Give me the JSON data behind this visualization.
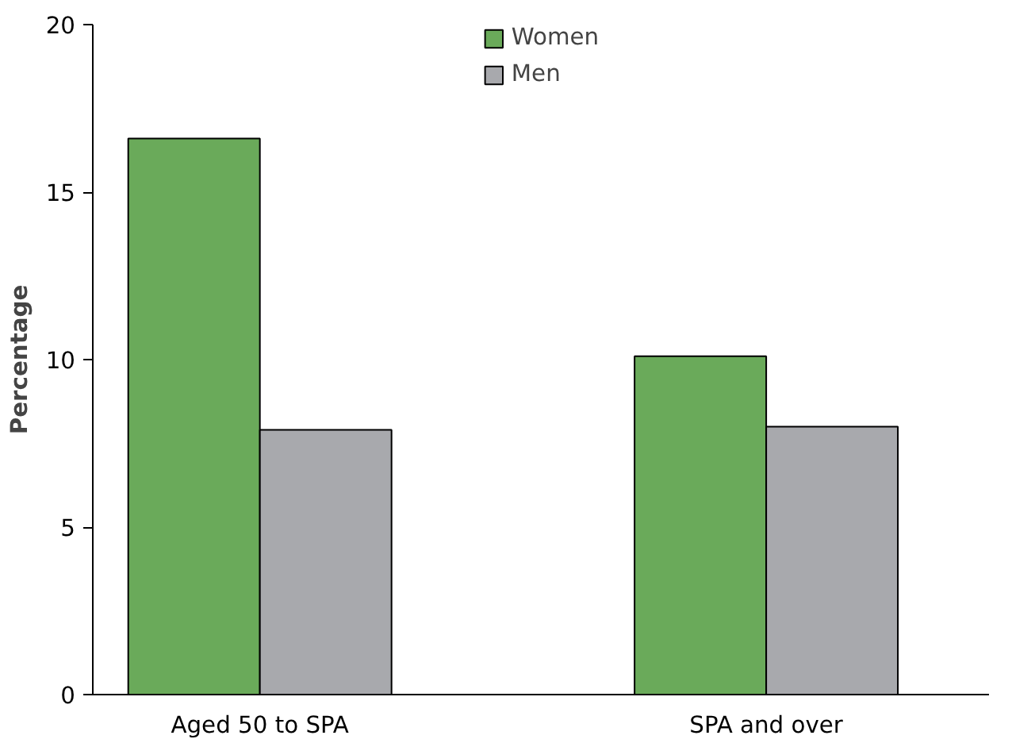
{
  "chart_data": {
    "type": "bar",
    "ylabel": "Percentage",
    "categories": [
      "Aged 50 to SPA",
      "SPA and over"
    ],
    "series": [
      {
        "name": "Women",
        "color": "#6aaa5a",
        "values": [
          16.6,
          10.1
        ]
      },
      {
        "name": "Men",
        "color": "#a8a9ad",
        "values": [
          7.9,
          8.0
        ]
      }
    ],
    "ylim": [
      0,
      20
    ],
    "yticks": [
      0,
      5,
      10,
      15,
      20
    ],
    "grid": false,
    "legend": "top"
  }
}
